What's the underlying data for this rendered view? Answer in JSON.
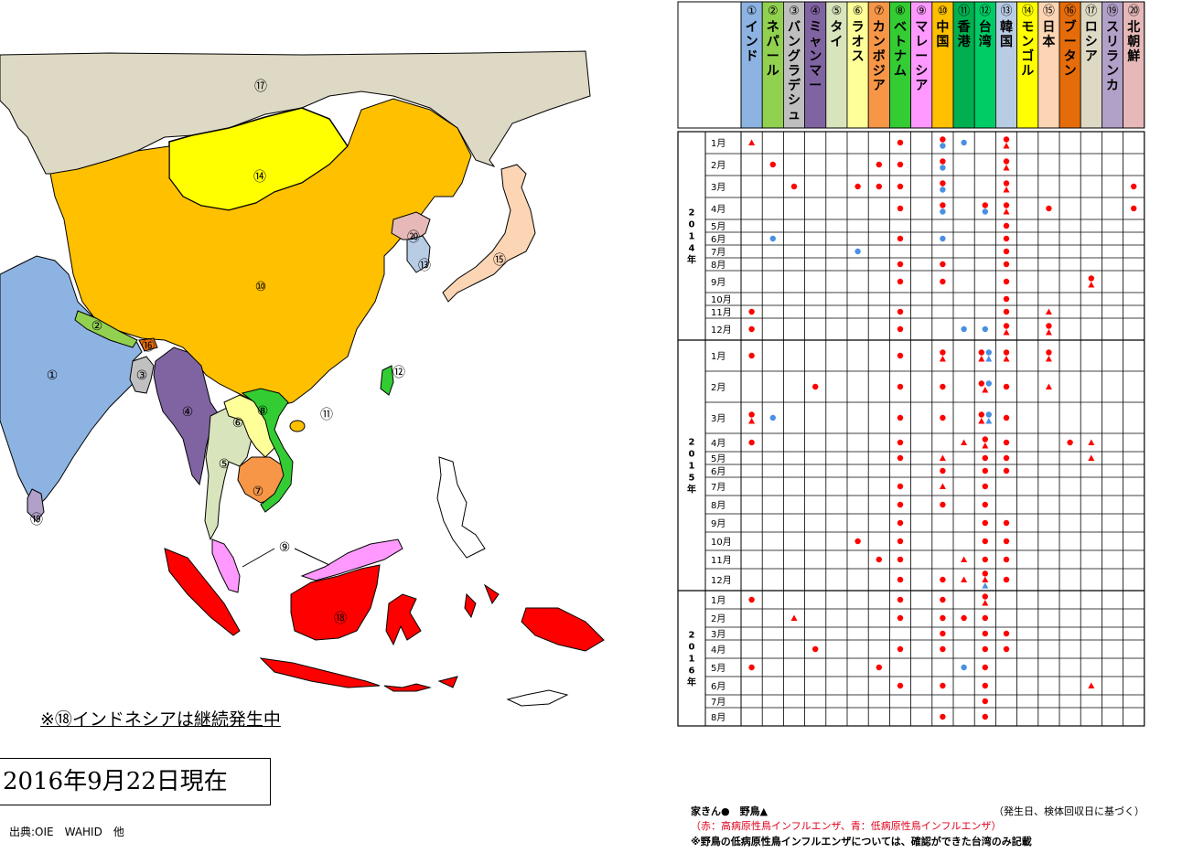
{
  "map": {
    "indonesia_note": "※⑱インドネシアは継続発生中",
    "as_of_date": "2016年9月22日現在",
    "source": "出典:OIE　WAHID　他",
    "labels": [
      {
        "id": "india",
        "text": "①"
      },
      {
        "id": "nepal",
        "text": "②"
      },
      {
        "id": "bangladesh",
        "text": "③"
      },
      {
        "id": "myanmar",
        "text": "④"
      },
      {
        "id": "thailand",
        "text": "⑤"
      },
      {
        "id": "laos",
        "text": "⑥"
      },
      {
        "id": "cambodia",
        "text": "⑦"
      },
      {
        "id": "vietnam",
        "text": "⑧"
      },
      {
        "id": "malaysia",
        "text": "⑨"
      },
      {
        "id": "china",
        "text": "⑩"
      },
      {
        "id": "hongkong",
        "text": "⑪"
      },
      {
        "id": "taiwan",
        "text": "⑫"
      },
      {
        "id": "korea",
        "text": "⑬"
      },
      {
        "id": "mongolia",
        "text": "⑭"
      },
      {
        "id": "japan",
        "text": "⑮"
      },
      {
        "id": "bhutan",
        "text": "⑯"
      },
      {
        "id": "russia",
        "text": "⑰"
      },
      {
        "id": "indonesia",
        "text": "⑱"
      },
      {
        "id": "srilanka",
        "text": "⑲"
      },
      {
        "id": "northkorea",
        "text": "⑳"
      }
    ],
    "colors": {
      "india": "#8db3e2",
      "nepal": "#92d050",
      "bangladesh": "#c0c0c0",
      "myanmar": "#8064a2",
      "thailand": "#d8e4bc",
      "laos": "#ffff99",
      "cambodia": "#f79646",
      "vietnam": "#33cc33",
      "malaysia": "#ff99ff",
      "china": "#ffc000",
      "hongkong": "#ffc000",
      "taiwan": "#33cc33",
      "korea": "#b8cce4",
      "mongolia": "#ffff00",
      "japan": "#fcd5b4",
      "bhutan": "#e46c0a",
      "russia": "#ddd9c4",
      "indonesia": "#ff0000",
      "srilanka": "#b1a0c7",
      "northkorea": "#e6b9b8"
    }
  },
  "table": {
    "columns": [
      {
        "num": "①",
        "name": "インド",
        "color": "#8db3e2"
      },
      {
        "num": "②",
        "name": "ネパール",
        "color": "#92d050"
      },
      {
        "num": "③",
        "name": "バングラデシュ",
        "color": "#bfbfbf"
      },
      {
        "num": "④",
        "name": "ミャンマー",
        "color": "#8064a2"
      },
      {
        "num": "⑤",
        "name": "タイ",
        "color": "#d8e4bc"
      },
      {
        "num": "⑥",
        "name": "ラオス",
        "color": "#ffff99"
      },
      {
        "num": "⑦",
        "name": "カンボジア",
        "color": "#f79646"
      },
      {
        "num": "⑧",
        "name": "ベトナム",
        "color": "#33cc33"
      },
      {
        "num": "⑨",
        "name": "マレーシア",
        "color": "#ff99ff"
      },
      {
        "num": "⑩",
        "name": "中国",
        "color": "#ffc000"
      },
      {
        "num": "⑪",
        "name": "香港",
        "color": "#00b050"
      },
      {
        "num": "⑫",
        "name": "台湾",
        "color": "#00cc66"
      },
      {
        "num": "⑬",
        "name": "韓国",
        "color": "#b8cce4"
      },
      {
        "num": "⑭",
        "name": "モンゴル",
        "color": "#ffff00"
      },
      {
        "num": "⑮",
        "name": "日本",
        "color": "#fcd5b4"
      },
      {
        "num": "⑯",
        "name": "ブータン",
        "color": "#e46c0a"
      },
      {
        "num": "⑰",
        "name": "ロシア",
        "color": "#ddd9c4"
      },
      {
        "num": "⑲",
        "name": "スリランカ",
        "color": "#b1a0c7"
      },
      {
        "num": "⑳",
        "name": "北朝鮮",
        "color": "#e6b9b8"
      }
    ],
    "years": [
      {
        "label": "2014年",
        "chars": [
          "2",
          "0",
          "1",
          "4",
          "年"
        ],
        "months": [
          "1月",
          "2月",
          "3月",
          "4月",
          "5月",
          "6月",
          "7月",
          "8月",
          "9月",
          "10月",
          "11月",
          "12月"
        ]
      },
      {
        "label": "2015年",
        "chars": [
          "2",
          "0",
          "1",
          "5",
          "年"
        ],
        "months": [
          "1月",
          "2月",
          "3月",
          "4月",
          "5月",
          "6月",
          "7月",
          "8月",
          "9月",
          "10月",
          "11月",
          "12月"
        ]
      },
      {
        "label": "2016年",
        "chars": [
          "2",
          "0",
          "1",
          "6",
          "年"
        ],
        "months": [
          "1月",
          "2月",
          "3月",
          "4月",
          "5月",
          "6月",
          "7月",
          "8月"
        ]
      }
    ],
    "outbreaks": [
      {
        "row": 0,
        "col": 0,
        "marks": [
          "rt"
        ]
      },
      {
        "row": 0,
        "col": 7,
        "marks": [
          "rc"
        ]
      },
      {
        "row": 0,
        "col": 9,
        "marks": [
          "rc",
          "bc"
        ]
      },
      {
        "row": 0,
        "col": 10,
        "marks": [
          "bc"
        ]
      },
      {
        "row": 0,
        "col": 12,
        "marks": [
          "rc",
          "rt"
        ]
      },
      {
        "row": 1,
        "col": 1,
        "marks": [
          "rc"
        ]
      },
      {
        "row": 1,
        "col": 6,
        "marks": [
          "rc"
        ]
      },
      {
        "row": 1,
        "col": 7,
        "marks": [
          "rc"
        ]
      },
      {
        "row": 1,
        "col": 9,
        "marks": [
          "rc",
          "bc"
        ]
      },
      {
        "row": 1,
        "col": 12,
        "marks": [
          "rc",
          "rt"
        ]
      },
      {
        "row": 2,
        "col": 2,
        "marks": [
          "rc"
        ]
      },
      {
        "row": 2,
        "col": 5,
        "marks": [
          "rc"
        ]
      },
      {
        "row": 2,
        "col": 6,
        "marks": [
          "rc"
        ]
      },
      {
        "row": 2,
        "col": 7,
        "marks": [
          "rc"
        ]
      },
      {
        "row": 2,
        "col": 9,
        "marks": [
          "rc",
          "bc"
        ]
      },
      {
        "row": 2,
        "col": 12,
        "marks": [
          "rc",
          "rt"
        ]
      },
      {
        "row": 2,
        "col": 18,
        "marks": [
          "rc"
        ]
      },
      {
        "row": 3,
        "col": 7,
        "marks": [
          "rc"
        ]
      },
      {
        "row": 3,
        "col": 9,
        "marks": [
          "rc",
          "bc"
        ]
      },
      {
        "row": 3,
        "col": 11,
        "marks": [
          "rc",
          "bc"
        ]
      },
      {
        "row": 3,
        "col": 12,
        "marks": [
          "rc",
          "rt"
        ]
      },
      {
        "row": 3,
        "col": 14,
        "marks": [
          "rc"
        ]
      },
      {
        "row": 3,
        "col": 18,
        "marks": [
          "rc"
        ]
      },
      {
        "row": 4,
        "col": 12,
        "marks": [
          "rc"
        ]
      },
      {
        "row": 5,
        "col": 1,
        "marks": [
          "bc"
        ]
      },
      {
        "row": 5,
        "col": 7,
        "marks": [
          "rc"
        ]
      },
      {
        "row": 5,
        "col": 9,
        "marks": [
          "bc"
        ]
      },
      {
        "row": 5,
        "col": 12,
        "marks": [
          "rc"
        ]
      },
      {
        "row": 6,
        "col": 5,
        "marks": [
          "bc"
        ]
      },
      {
        "row": 6,
        "col": 12,
        "marks": [
          "rc"
        ]
      },
      {
        "row": 7,
        "col": 7,
        "marks": [
          "rc"
        ]
      },
      {
        "row": 7,
        "col": 9,
        "marks": [
          "rc"
        ]
      },
      {
        "row": 7,
        "col": 12,
        "marks": [
          "rc"
        ]
      },
      {
        "row": 8,
        "col": 7,
        "marks": [
          "rc"
        ]
      },
      {
        "row": 8,
        "col": 9,
        "marks": [
          "rc"
        ]
      },
      {
        "row": 8,
        "col": 12,
        "marks": [
          "rc"
        ]
      },
      {
        "row": 8,
        "col": 16,
        "marks": [
          "rc",
          "rt"
        ]
      },
      {
        "row": 9,
        "col": 12,
        "marks": [
          "rc"
        ]
      },
      {
        "row": 10,
        "col": 0,
        "marks": [
          "rc"
        ]
      },
      {
        "row": 10,
        "col": 7,
        "marks": [
          "rc"
        ]
      },
      {
        "row": 10,
        "col": 12,
        "marks": [
          "rc"
        ]
      },
      {
        "row": 10,
        "col": 14,
        "marks": [
          "rt"
        ]
      },
      {
        "row": 11,
        "col": 0,
        "marks": [
          "rc"
        ]
      },
      {
        "row": 11,
        "col": 7,
        "marks": [
          "rc"
        ]
      },
      {
        "row": 11,
        "col": 10,
        "marks": [
          "bc"
        ]
      },
      {
        "row": 11,
        "col": 11,
        "marks": [
          "bc"
        ]
      },
      {
        "row": 11,
        "col": 12,
        "marks": [
          "rc",
          "rt"
        ]
      },
      {
        "row": 11,
        "col": 14,
        "marks": [
          "rc",
          "rt"
        ]
      },
      {
        "row": 12,
        "col": 0,
        "marks": [
          "rc"
        ]
      },
      {
        "row": 12,
        "col": 7,
        "marks": [
          "rc"
        ]
      },
      {
        "row": 12,
        "col": 9,
        "marks": [
          "rc",
          "rt"
        ]
      },
      {
        "row": 12,
        "col": 11,
        "marks": [
          "rc",
          "bc",
          "rt",
          "bt"
        ]
      },
      {
        "row": 12,
        "col": 12,
        "marks": [
          "rc",
          "rt"
        ]
      },
      {
        "row": 12,
        "col": 14,
        "marks": [
          "rc",
          "rt"
        ]
      },
      {
        "row": 13,
        "col": 3,
        "marks": [
          "rc"
        ]
      },
      {
        "row": 13,
        "col": 7,
        "marks": [
          "rc"
        ]
      },
      {
        "row": 13,
        "col": 9,
        "marks": [
          "rc"
        ]
      },
      {
        "row": 13,
        "col": 11,
        "marks": [
          "rc",
          "bc",
          "rt"
        ]
      },
      {
        "row": 13,
        "col": 12,
        "marks": [
          "rc"
        ]
      },
      {
        "row": 13,
        "col": 14,
        "marks": [
          "rt"
        ]
      },
      {
        "row": 14,
        "col": 0,
        "marks": [
          "rc",
          "rt"
        ]
      },
      {
        "row": 14,
        "col": 1,
        "marks": [
          "bc"
        ]
      },
      {
        "row": 14,
        "col": 7,
        "marks": [
          "rc"
        ]
      },
      {
        "row": 14,
        "col": 9,
        "marks": [
          "rc"
        ]
      },
      {
        "row": 14,
        "col": 11,
        "marks": [
          "rc",
          "bc",
          "rt",
          "bt"
        ]
      },
      {
        "row": 14,
        "col": 12,
        "marks": [
          "rc"
        ]
      },
      {
        "row": 15,
        "col": 0,
        "marks": [
          "rc"
        ]
      },
      {
        "row": 15,
        "col": 7,
        "marks": [
          "rc"
        ]
      },
      {
        "row": 15,
        "col": 10,
        "marks": [
          "rt"
        ]
      },
      {
        "row": 15,
        "col": 11,
        "marks": [
          "rc",
          "rt"
        ]
      },
      {
        "row": 15,
        "col": 12,
        "marks": [
          "rc"
        ]
      },
      {
        "row": 15,
        "col": 15,
        "marks": [
          "rc"
        ]
      },
      {
        "row": 15,
        "col": 16,
        "marks": [
          "rt"
        ]
      },
      {
        "row": 16,
        "col": 7,
        "marks": [
          "rc"
        ]
      },
      {
        "row": 16,
        "col": 9,
        "marks": [
          "rt"
        ]
      },
      {
        "row": 16,
        "col": 11,
        "marks": [
          "rc"
        ]
      },
      {
        "row": 16,
        "col": 12,
        "marks": [
          "rc"
        ]
      },
      {
        "row": 16,
        "col": 16,
        "marks": [
          "rt"
        ]
      },
      {
        "row": 17,
        "col": 9,
        "marks": [
          "rc"
        ]
      },
      {
        "row": 17,
        "col": 11,
        "marks": [
          "rc"
        ]
      },
      {
        "row": 17,
        "col": 12,
        "marks": [
          "rc"
        ]
      },
      {
        "row": 18,
        "col": 7,
        "marks": [
          "rc"
        ]
      },
      {
        "row": 18,
        "col": 9,
        "marks": [
          "rt"
        ]
      },
      {
        "row": 18,
        "col": 11,
        "marks": [
          "rc"
        ]
      },
      {
        "row": 19,
        "col": 7,
        "marks": [
          "rc"
        ]
      },
      {
        "row": 19,
        "col": 9,
        "marks": [
          "rc"
        ]
      },
      {
        "row": 19,
        "col": 11,
        "marks": [
          "rc"
        ]
      },
      {
        "row": 20,
        "col": 7,
        "marks": [
          "rc"
        ]
      },
      {
        "row": 20,
        "col": 11,
        "marks": [
          "rc"
        ]
      },
      {
        "row": 20,
        "col": 12,
        "marks": [
          "rc"
        ]
      },
      {
        "row": 21,
        "col": 5,
        "marks": [
          "rc"
        ]
      },
      {
        "row": 21,
        "col": 7,
        "marks": [
          "rc"
        ]
      },
      {
        "row": 21,
        "col": 11,
        "marks": [
          "rc"
        ]
      },
      {
        "row": 21,
        "col": 12,
        "marks": [
          "rc"
        ]
      },
      {
        "row": 22,
        "col": 6,
        "marks": [
          "rc"
        ]
      },
      {
        "row": 22,
        "col": 7,
        "marks": [
          "rc"
        ]
      },
      {
        "row": 22,
        "col": 10,
        "marks": [
          "rt"
        ]
      },
      {
        "row": 22,
        "col": 11,
        "marks": [
          "rc"
        ]
      },
      {
        "row": 22,
        "col": 12,
        "marks": [
          "rc"
        ]
      },
      {
        "row": 23,
        "col": 7,
        "marks": [
          "rc"
        ]
      },
      {
        "row": 23,
        "col": 9,
        "marks": [
          "rc"
        ]
      },
      {
        "row": 23,
        "col": 10,
        "marks": [
          "rt"
        ]
      },
      {
        "row": 23,
        "col": 11,
        "marks": [
          "rc",
          "rt",
          "bt"
        ]
      },
      {
        "row": 23,
        "col": 12,
        "marks": [
          "rc"
        ]
      },
      {
        "row": 24,
        "col": 0,
        "marks": [
          "rc"
        ]
      },
      {
        "row": 24,
        "col": 7,
        "marks": [
          "rc"
        ]
      },
      {
        "row": 24,
        "col": 9,
        "marks": [
          "rc"
        ]
      },
      {
        "row": 24,
        "col": 11,
        "marks": [
          "rc",
          "rt"
        ]
      },
      {
        "row": 25,
        "col": 2,
        "marks": [
          "rt"
        ]
      },
      {
        "row": 25,
        "col": 7,
        "marks": [
          "rc"
        ]
      },
      {
        "row": 25,
        "col": 9,
        "marks": [
          "rc"
        ]
      },
      {
        "row": 25,
        "col": 10,
        "marks": [
          "rc"
        ]
      },
      {
        "row": 25,
        "col": 11,
        "marks": [
          "rc"
        ]
      },
      {
        "row": 26,
        "col": 9,
        "marks": [
          "rc"
        ]
      },
      {
        "row": 26,
        "col": 11,
        "marks": [
          "rc"
        ]
      },
      {
        "row": 26,
        "col": 12,
        "marks": [
          "rc"
        ]
      },
      {
        "row": 27,
        "col": 3,
        "marks": [
          "rc"
        ]
      },
      {
        "row": 27,
        "col": 7,
        "marks": [
          "rc"
        ]
      },
      {
        "row": 27,
        "col": 9,
        "marks": [
          "rc"
        ]
      },
      {
        "row": 27,
        "col": 11,
        "marks": [
          "rc"
        ]
      },
      {
        "row": 27,
        "col": 12,
        "marks": [
          "rc"
        ]
      },
      {
        "row": 28,
        "col": 0,
        "marks": [
          "rc"
        ]
      },
      {
        "row": 28,
        "col": 6,
        "marks": [
          "rc"
        ]
      },
      {
        "row": 28,
        "col": 10,
        "marks": [
          "bc"
        ]
      },
      {
        "row": 28,
        "col": 11,
        "marks": [
          "rc"
        ]
      },
      {
        "row": 29,
        "col": 7,
        "marks": [
          "rc"
        ]
      },
      {
        "row": 29,
        "col": 9,
        "marks": [
          "rc"
        ]
      },
      {
        "row": 29,
        "col": 11,
        "marks": [
          "rc"
        ]
      },
      {
        "row": 29,
        "col": 16,
        "marks": [
          "rt"
        ]
      },
      {
        "row": 30,
        "col": 11,
        "marks": [
          "rc"
        ]
      },
      {
        "row": 31,
        "col": 9,
        "marks": [
          "rc"
        ]
      },
      {
        "row": 31,
        "col": 11,
        "marks": [
          "rc"
        ]
      }
    ],
    "mark_colors": {
      "red": "#ff0000",
      "blue": "#4a90e2"
    },
    "legend": {
      "symbols": "家きん●　野鳥▲",
      "basis": "（発生日、検体回収日に基づく）",
      "colors": "（赤：高病原性鳥インフルエンザ、青：低病原性鳥インフルエンザ）",
      "taiwan_note": "※野鳥の低病原性鳥インフルエンザについては、確認ができた台湾のみ記載"
    }
  }
}
